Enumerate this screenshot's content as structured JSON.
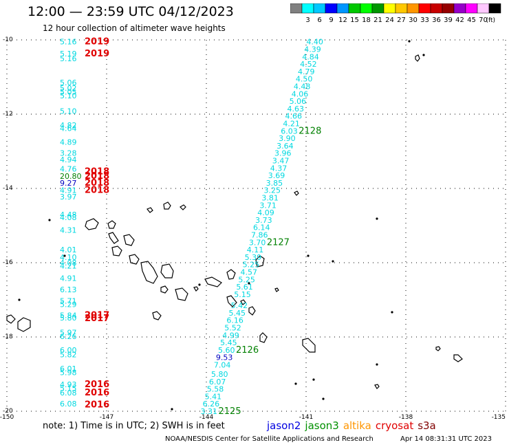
{
  "header": {
    "title": "12:00 — 23:59 UTC 04/12/2023",
    "subtitle": "12 hour collection of altimeter wave heights"
  },
  "legend": {
    "unit": "(ft)",
    "items": [
      {
        "color": "#808080",
        "label": ""
      },
      {
        "color": "#00ffff",
        "label": "3"
      },
      {
        "color": "#00c8ff",
        "label": "6"
      },
      {
        "color": "#0000ff",
        "label": "9"
      },
      {
        "color": "#0096ff",
        "label": "12"
      },
      {
        "color": "#00c800",
        "label": "15"
      },
      {
        "color": "#00ff00",
        "label": "18"
      },
      {
        "color": "#009600",
        "label": "21"
      },
      {
        "color": "#ffff00",
        "label": "24"
      },
      {
        "color": "#ffc800",
        "label": "27"
      },
      {
        "color": "#ff9600",
        "label": "30"
      },
      {
        "color": "#ff0000",
        "label": "33"
      },
      {
        "color": "#c80000",
        "label": "36"
      },
      {
        "color": "#960000",
        "label": "39"
      },
      {
        "color": "#9600c8",
        "label": "42"
      },
      {
        "color": "#ff00ff",
        "label": "45"
      },
      {
        "color": "#ffc8ff",
        "label": "70"
      },
      {
        "color": "#000000",
        "label": ""
      }
    ]
  },
  "axes": {
    "lat_labels": [
      "-10",
      "-12",
      "-14",
      "-16",
      "-18",
      "-20"
    ],
    "lon_labels": [
      "-150",
      "-147",
      "-144",
      "-141",
      "-138",
      "-135"
    ]
  },
  "colors": {
    "cyan": "#00d8e0",
    "red": "#e00000",
    "green": "#008000",
    "blue": "#0000c0"
  },
  "track_west": {
    "values": [
      {
        "t": "5.16",
        "c": "cyan",
        "lat": -10.05
      },
      {
        "t": "5.19",
        "c": "cyan",
        "lat": -10.37
      },
      {
        "t": "5.16",
        "c": "cyan",
        "lat": -10.5
      },
      {
        "t": "5.06",
        "c": "cyan",
        "lat": -11.15
      },
      {
        "t": "5.02",
        "c": "cyan",
        "lat": -11.3
      },
      {
        "t": "5.05",
        "c": "cyan",
        "lat": -11.4
      },
      {
        "t": "5.10",
        "c": "cyan",
        "lat": -11.5
      },
      {
        "t": "5.10",
        "c": "cyan",
        "lat": -11.92
      },
      {
        "t": "4.82",
        "c": "cyan",
        "lat": -12.3
      },
      {
        "t": "4.64",
        "c": "cyan",
        "lat": -12.38
      },
      {
        "t": "4.89",
        "c": "cyan",
        "lat": -12.75
      },
      {
        "t": "3.28",
        "c": "cyan",
        "lat": -13.05
      },
      {
        "t": "4.94",
        "c": "cyan",
        "lat": -13.22
      },
      {
        "t": "4.76",
        "c": "cyan",
        "lat": -13.47
      },
      {
        "t": "20.80",
        "c": "green",
        "lat": -13.67
      },
      {
        "t": "9.27",
        "c": "blue",
        "lat": -13.85
      },
      {
        "t": "4.91",
        "c": "cyan",
        "lat": -14.05
      },
      {
        "t": "3.97",
        "c": "cyan",
        "lat": -14.22
      },
      {
        "t": "4.48",
        "c": "cyan",
        "lat": -14.7
      },
      {
        "t": "4.08",
        "c": "cyan",
        "lat": -14.78
      },
      {
        "t": "4.31",
        "c": "cyan",
        "lat": -15.12
      },
      {
        "t": "4.01",
        "c": "cyan",
        "lat": -15.65
      },
      {
        "t": "4.10",
        "c": "cyan",
        "lat": -15.85
      },
      {
        "t": "4.08",
        "c": "cyan",
        "lat": -16.0
      },
      {
        "t": "4.21",
        "c": "cyan",
        "lat": -16.08
      },
      {
        "t": "4.91",
        "c": "cyan",
        "lat": -16.42
      },
      {
        "t": "6.13",
        "c": "cyan",
        "lat": -16.72
      },
      {
        "t": "5.71",
        "c": "cyan",
        "lat": -17.03
      },
      {
        "t": "5.29",
        "c": "cyan",
        "lat": -17.12
      },
      {
        "t": "5.84",
        "c": "cyan",
        "lat": -17.42
      },
      {
        "t": "5.80",
        "c": "cyan",
        "lat": -17.48
      },
      {
        "t": "5.97",
        "c": "cyan",
        "lat": -17.88
      },
      {
        "t": "6.26",
        "c": "cyan",
        "lat": -17.98
      },
      {
        "t": "6.00",
        "c": "cyan",
        "lat": -18.35
      },
      {
        "t": "5.82",
        "c": "cyan",
        "lat": -18.47
      },
      {
        "t": "6.01",
        "c": "cyan",
        "lat": -18.85
      },
      {
        "t": "5.98",
        "c": "cyan",
        "lat": -18.95
      },
      {
        "t": "4.93",
        "c": "cyan",
        "lat": -19.28
      },
      {
        "t": "5.15",
        "c": "cyan",
        "lat": -19.38
      },
      {
        "t": "6.08",
        "c": "cyan",
        "lat": -19.5
      },
      {
        "t": "6.08",
        "c": "cyan",
        "lat": -19.8
      }
    ],
    "passes": [
      {
        "t": "2019",
        "lat": -10.05
      },
      {
        "t": "2019",
        "lat": -10.37
      },
      {
        "t": "2018",
        "lat": -13.55
      },
      {
        "t": "2018",
        "lat": -13.67
      },
      {
        "t": "2018",
        "lat": -13.85
      },
      {
        "t": "2018",
        "lat": -14.05
      },
      {
        "t": "2017",
        "lat": -17.42
      },
      {
        "t": "2017",
        "lat": -17.5
      },
      {
        "t": "2016",
        "lat": -19.28
      },
      {
        "t": "2016",
        "lat": -19.5
      },
      {
        "t": "2016",
        "lat": -19.82
      }
    ]
  },
  "track_east": {
    "values": [
      {
        "t": "4.40",
        "c": "cyan",
        "lat": -10.05
      },
      {
        "t": "4.39",
        "c": "cyan",
        "lat": -10.25
      },
      {
        "t": "4.84",
        "c": "cyan",
        "lat": -10.45
      },
      {
        "t": "4.52",
        "c": "cyan",
        "lat": -10.65
      },
      {
        "t": "4.79",
        "c": "cyan",
        "lat": -10.85
      },
      {
        "t": "4.50",
        "c": "cyan",
        "lat": -11.05
      },
      {
        "t": "4.48",
        "c": "cyan",
        "lat": -11.25
      },
      {
        "t": "4.06",
        "c": "cyan",
        "lat": -11.45
      },
      {
        "t": "5.06",
        "c": "cyan",
        "lat": -11.65
      },
      {
        "t": "4.63",
        "c": "cyan",
        "lat": -11.85
      },
      {
        "t": "4.66",
        "c": "cyan",
        "lat": -12.05
      },
      {
        "t": "4.21",
        "c": "cyan",
        "lat": -12.25
      },
      {
        "t": "6.03",
        "c": "cyan",
        "lat": -12.45
      },
      {
        "t": "3.90",
        "c": "cyan",
        "lat": -12.65
      },
      {
        "t": "3.64",
        "c": "cyan",
        "lat": -12.85
      },
      {
        "t": "3.96",
        "c": "cyan",
        "lat": -13.05
      },
      {
        "t": "3.47",
        "c": "cyan",
        "lat": -13.25
      },
      {
        "t": "4.37",
        "c": "cyan",
        "lat": -13.45
      },
      {
        "t": "3.69",
        "c": "cyan",
        "lat": -13.65
      },
      {
        "t": "3.85",
        "c": "cyan",
        "lat": -13.85
      },
      {
        "t": "3.25",
        "c": "cyan",
        "lat": -14.05
      },
      {
        "t": "3.81",
        "c": "cyan",
        "lat": -14.25
      },
      {
        "t": "3.71",
        "c": "cyan",
        "lat": -14.45
      },
      {
        "t": "4.09",
        "c": "cyan",
        "lat": -14.65
      },
      {
        "t": "3.73",
        "c": "cyan",
        "lat": -14.85
      },
      {
        "t": "6.14",
        "c": "cyan",
        "lat": -15.05
      },
      {
        "t": "7.86",
        "c": "cyan",
        "lat": -15.25
      },
      {
        "t": "3.70",
        "c": "cyan",
        "lat": -15.45
      },
      {
        "t": "4.11",
        "c": "cyan",
        "lat": -15.65
      },
      {
        "t": "5.39",
        "c": "cyan",
        "lat": -15.85
      },
      {
        "t": "5.25",
        "c": "cyan",
        "lat": -16.05
      },
      {
        "t": "4.57",
        "c": "cyan",
        "lat": -16.25
      },
      {
        "t": "5.25",
        "c": "cyan",
        "lat": -16.45
      },
      {
        "t": "5.61",
        "c": "cyan",
        "lat": -16.65
      },
      {
        "t": "5.15",
        "c": "cyan",
        "lat": -16.85
      },
      {
        "t": "5.42",
        "c": "cyan",
        "lat": -17.15
      },
      {
        "t": "5.45",
        "c": "cyan",
        "lat": -17.35
      },
      {
        "t": "6.16",
        "c": "cyan",
        "lat": -17.55
      },
      {
        "t": "5.52",
        "c": "cyan",
        "lat": -17.75
      },
      {
        "t": "4.99",
        "c": "cyan",
        "lat": -17.95
      },
      {
        "t": "5.45",
        "c": "cyan",
        "lat": -18.15
      },
      {
        "t": "5.60",
        "c": "cyan",
        "lat": -18.35
      },
      {
        "t": "9.53",
        "c": "blue",
        "lat": -18.55
      },
      {
        "t": "7.04",
        "c": "cyan",
        "lat": -18.75
      },
      {
        "t": "5.80",
        "c": "cyan",
        "lat": -19.0
      },
      {
        "t": "6.07",
        "c": "cyan",
        "lat": -19.2
      },
      {
        "t": "5.58",
        "c": "cyan",
        "lat": -19.4
      },
      {
        "t": "5.41",
        "c": "cyan",
        "lat": -19.6
      },
      {
        "t": "6.26",
        "c": "cyan",
        "lat": -19.8
      },
      {
        "t": "3.31",
        "c": "cyan",
        "lat": -20.0
      }
    ],
    "passes": [
      {
        "t": "2128",
        "lat": -12.45
      },
      {
        "t": "2127",
        "lat": -15.45
      },
      {
        "t": "2126",
        "lat": -18.35
      },
      {
        "t": "2125",
        "lat": -20.0
      }
    ]
  },
  "note": "note:  1) Time is in UTC;  2) SWH is in feet",
  "satellites": [
    {
      "name": "jason2",
      "color": "#0000e0"
    },
    {
      "name": "jason3",
      "color": "#009000"
    },
    {
      "name": "altika",
      "color": "#ff9600"
    },
    {
      "name": "cryosat",
      "color": "#e00000"
    },
    {
      "name": "s3a",
      "color": "#800000"
    }
  ],
  "footer": {
    "agency": "NOAA/NESDIS Center for Satellite Applications and Research",
    "generated": "Apr 14 08:31:31 UTC 2023"
  }
}
